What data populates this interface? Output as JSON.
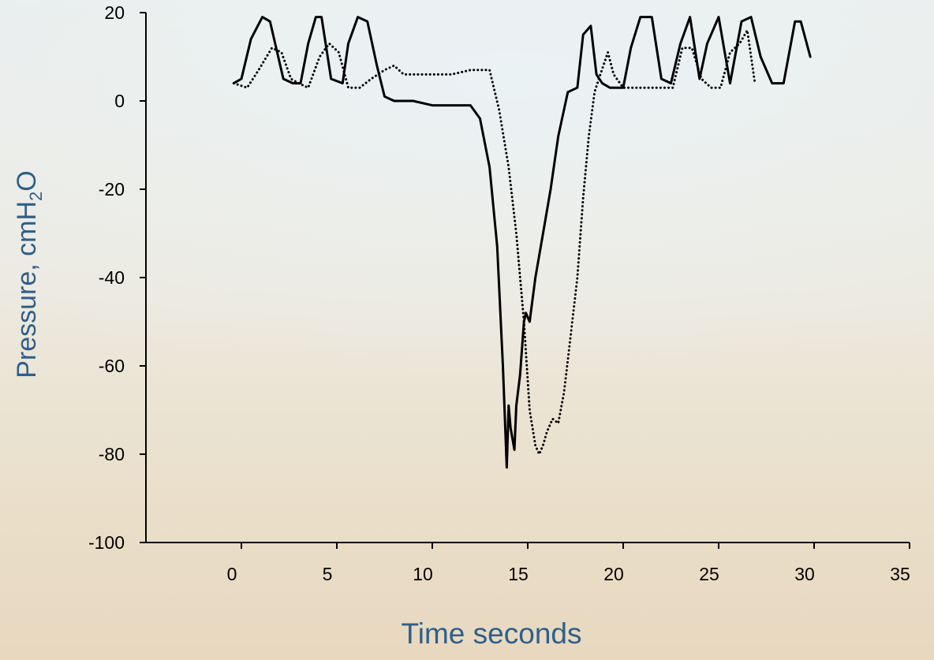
{
  "colors": {
    "axis": "#000000",
    "axis_title": "#2f5f8a",
    "series": "#000000"
  },
  "chart_data": {
    "type": "line",
    "title": "",
    "xlabel": "Time seconds",
    "ylabel": {
      "prefix": "Pressure, cmH",
      "sub": "2",
      "suffix": "O"
    },
    "xlim": [
      -5,
      35
    ],
    "ylim": [
      -100,
      20
    ],
    "xticks": [
      0,
      5,
      10,
      15,
      20,
      25,
      30,
      35
    ],
    "yticks": [
      20,
      0,
      -20,
      -40,
      -60,
      -80,
      -100
    ],
    "grid": false,
    "legend": "none",
    "series": [
      {
        "style": "solid",
        "x": [
          -0.4,
          0,
          0.5,
          1.1,
          1.5,
          2.2,
          2.7,
          3.1,
          3.5,
          3.9,
          4.2,
          4.7,
          5.3,
          5.6,
          6.1,
          6.6,
          7.1,
          7.5,
          8.0,
          8.5,
          9.0,
          10.0,
          11.0,
          12.0,
          12.5,
          13.0,
          13.4,
          13.7,
          13.9,
          14.0,
          14.1,
          14.3,
          14.4,
          14.6,
          14.8,
          14.9,
          15.1,
          15.4,
          15.8,
          16.2,
          16.6,
          17.1,
          17.6,
          17.9,
          18.3,
          18.6,
          18.9,
          19.3,
          20.0,
          20.4,
          20.9,
          21.5,
          22.0,
          22.5,
          23.0,
          23.5,
          24.0,
          24.4,
          25.0,
          25.6,
          26.2,
          26.7,
          27.2,
          27.8,
          28.4,
          29.0,
          29.3,
          29.8
        ],
        "y": [
          4,
          5,
          14,
          19,
          18,
          5,
          4,
          4,
          13,
          19,
          19,
          5,
          4,
          13,
          19,
          18,
          8,
          1,
          0,
          0,
          0,
          -1,
          -1,
          -1,
          -4,
          -15,
          -33,
          -60,
          -83,
          -69,
          -74,
          -79,
          -69,
          -62,
          -50,
          -48,
          -50,
          -40,
          -30,
          -20,
          -8,
          2,
          3,
          15,
          17,
          6,
          4,
          3,
          3,
          12,
          19,
          19,
          5,
          4,
          13,
          19,
          5,
          13,
          19,
          4,
          18,
          19,
          10,
          4,
          4,
          18,
          18,
          10
        ]
      },
      {
        "style": "dotted",
        "x": [
          -0.4,
          0.3,
          0.9,
          1.6,
          2.1,
          2.6,
          3.0,
          3.5,
          4.1,
          4.6,
          5.1,
          5.6,
          6.2,
          6.8,
          7.5,
          8.0,
          8.5,
          9.0,
          10.0,
          11.0,
          12.0,
          13.0,
          13.5,
          14.0,
          14.4,
          14.8,
          15.1,
          15.4,
          15.6,
          15.8,
          16.0,
          16.3,
          16.6,
          16.9,
          17.2,
          17.6,
          17.9,
          18.2,
          18.5,
          18.8,
          19.2,
          19.5,
          20.0,
          21.0,
          22.0,
          22.6,
          23.1,
          23.6,
          24.1,
          24.6,
          25.1,
          25.6,
          26.1,
          26.5,
          26.9
        ],
        "y": [
          4,
          3,
          7,
          12,
          11,
          5,
          4,
          3,
          10,
          13,
          11,
          3,
          3,
          5,
          7,
          8,
          6,
          6,
          6,
          6,
          7,
          7,
          -2,
          -15,
          -30,
          -50,
          -70,
          -78,
          -80,
          -78,
          -75,
          -72,
          -73,
          -66,
          -55,
          -40,
          -22,
          -8,
          2,
          6,
          11,
          6,
          3,
          3,
          3,
          3,
          12,
          12,
          5,
          3,
          3,
          11,
          13,
          16,
          4
        ]
      }
    ]
  }
}
